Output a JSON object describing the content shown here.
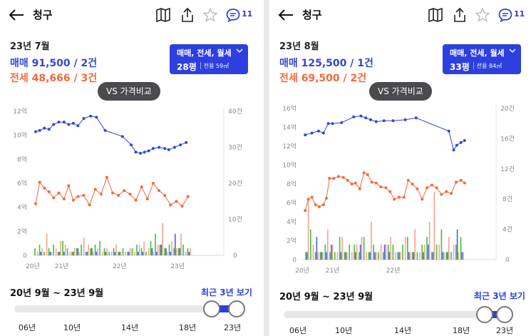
{
  "colors": {
    "sale": "#3347d4",
    "rent_jeonse": "#f06a3d",
    "bar_green": "#3fbf3f",
    "bar_blue": "#4a5fe6",
    "bar_pink": "#f4a38f",
    "accent": "#2e3fe0"
  },
  "panels": [
    {
      "header": {
        "title": "청구",
        "comment_count": "11",
        "icons": [
          "back-arrow-icon",
          "map-book-icon",
          "share-icon",
          "star-icon",
          "comment-icon"
        ]
      },
      "summary": {
        "month": "23년 7월",
        "sale": "매매 91,500 / 2건",
        "jeonse": "전세 48,666 / 3건"
      },
      "filter": {
        "types": "매매, 전세, 월세",
        "size": "28평",
        "area": "전용 59㎡"
      },
      "vs_label": "VS 가격비교",
      "range_label": "20년 9월 ~ 23년 9월",
      "recent_label": "최근 3년 보기",
      "slider_years": [
        "06년",
        "10년",
        "14년",
        "18년",
        "23년"
      ],
      "chart_data": {
        "type": "line",
        "x_ticks": [
          "20년",
          "21년",
          "22년",
          "23년"
        ],
        "left_axis": {
          "unit": "억",
          "range": [
            0,
            12
          ],
          "ticks": [
            "0",
            "2억",
            "4억",
            "6억",
            "8억",
            "10억",
            "12억"
          ]
        },
        "right_axis": {
          "unit": "건",
          "range": [
            0,
            40
          ],
          "ticks": [
            "0",
            "10건",
            "20건",
            "30건",
            "40건"
          ]
        },
        "x_range": [
          2020.5,
          2023.8
        ],
        "series": [
          {
            "kind": "sale",
            "x": [
              2020.55,
              2020.62,
              2020.7,
              2020.78,
              2020.86,
              2020.95,
              2021.04,
              2021.12,
              2021.2,
              2021.28,
              2021.38,
              2021.5,
              2021.6,
              2021.75,
              2022.05,
              2022.2,
              2022.28,
              2022.36,
              2022.43,
              2022.5,
              2022.58,
              2022.68,
              2022.78,
              2022.85,
              2022.95,
              2023.05,
              2023.15
            ],
            "y": [
              10.3,
              10.4,
              10.6,
              10.5,
              10.9,
              11.1,
              11.1,
              10.9,
              11.0,
              10.8,
              11.4,
              11.6,
              11.5,
              10.4,
              9.9,
              9.2,
              8.6,
              8.5,
              8.6,
              8.7,
              8.9,
              9.0,
              8.9,
              8.8,
              9.0,
              9.2,
              9.4
            ]
          },
          {
            "kind": "jeonse",
            "x": [
              2020.55,
              2020.62,
              2020.7,
              2020.78,
              2020.86,
              2020.95,
              2021.04,
              2021.12,
              2021.2,
              2021.28,
              2021.38,
              2021.48,
              2021.58,
              2021.68,
              2021.78,
              2021.88,
              2021.98,
              2022.08,
              2022.18,
              2022.28,
              2022.38,
              2022.48,
              2022.58,
              2022.68,
              2022.78,
              2022.88,
              2022.98,
              2023.08,
              2023.18
            ],
            "y": [
              4.3,
              6.1,
              5.6,
              5.3,
              4.8,
              5.2,
              4.7,
              5.8,
              4.6,
              4.9,
              5.0,
              4.2,
              5.5,
              5.1,
              6.5,
              5.2,
              5.0,
              5.4,
              5.1,
              4.6,
              5.7,
              4.7,
              6.0,
              5.4,
              5.0,
              4.2,
              4.5,
              4.1,
              4.9
            ]
          }
        ],
        "volume_bars": {
          "x": [
            2020.56,
            2020.64,
            2020.72,
            2020.8,
            2020.88,
            2020.96,
            2021.04,
            2021.12,
            2021.2,
            2021.28,
            2021.36,
            2021.44,
            2021.52,
            2021.6,
            2021.68,
            2021.76,
            2021.84,
            2021.92,
            2022.0,
            2022.08,
            2022.16,
            2022.24,
            2022.32,
            2022.4,
            2022.48,
            2022.56,
            2022.64,
            2022.72,
            2022.8,
            2022.88,
            2022.96,
            2023.04,
            2023.12,
            2023.2
          ],
          "green": [
            2,
            3,
            1,
            2,
            3,
            1,
            4,
            2,
            1,
            2,
            3,
            1,
            2,
            3,
            4,
            2,
            1,
            2,
            1,
            2,
            1,
            2,
            3,
            2,
            1,
            4,
            6,
            3,
            2,
            3,
            2,
            2,
            3,
            2
          ],
          "blue": [
            0,
            1,
            0,
            1,
            0,
            1,
            1,
            0,
            1,
            2,
            0,
            1,
            2,
            1,
            0,
            1,
            0,
            1,
            1,
            0,
            1,
            0,
            1,
            1,
            0,
            2,
            1,
            3,
            2,
            1,
            6,
            2,
            0,
            1
          ],
          "pink": [
            1,
            2,
            6,
            1,
            2,
            4,
            3,
            1,
            2,
            1,
            5,
            3,
            1,
            2,
            1,
            2,
            1,
            3,
            1,
            1,
            2,
            1,
            3,
            4,
            2,
            1,
            3,
            9,
            1,
            4,
            2,
            6,
            1,
            2
          ]
        }
      }
    },
    {
      "header": {
        "title": "청구",
        "comment_count": "11",
        "icons": [
          "back-arrow-icon",
          "map-book-icon",
          "share-icon",
          "star-icon",
          "comment-icon"
        ]
      },
      "summary": {
        "month": "23년 8월",
        "sale": "매매 125,500 / 1건",
        "jeonse": "전세 69,500 / 2건"
      },
      "filter": {
        "types": "매매, 전세, 월세",
        "size": "33평",
        "area": "전용 84㎡"
      },
      "vs_label": "VS 가격비교",
      "range_label": "20년 9월 ~ 23년 9월",
      "recent_label": "최근 3년 보기",
      "slider_years": [
        "06년",
        "10년",
        "14년",
        "18년",
        "23년"
      ],
      "chart_data": {
        "type": "line",
        "x_ticks": [
          "20년",
          "21년",
          "22년"
        ],
        "left_axis": {
          "unit": "억",
          "range": [
            0,
            16
          ],
          "ticks": [
            "0",
            "2억",
            "4억",
            "6억",
            "8억",
            "10억",
            "12억",
            "14억",
            "16억"
          ]
        },
        "right_axis": {
          "unit": "건",
          "range": [
            0,
            20
          ],
          "ticks": [
            "0",
            "4건",
            "8건",
            "12건",
            "16건",
            "20건"
          ]
        },
        "x_range": [
          2020.5,
          2023.7
        ],
        "series": [
          {
            "kind": "sale",
            "x": [
              2020.55,
              2020.66,
              2020.77,
              2020.85,
              2020.93,
              2021.0,
              2021.15,
              2021.35,
              2021.47,
              2021.55,
              2021.63,
              2021.72,
              2021.85,
              2022.0,
              2022.2,
              2022.38,
              2022.92,
              2023.0,
              2023.05,
              2023.12,
              2023.18
            ],
            "y": [
              13.2,
              13.4,
              13.6,
              13.4,
              14.4,
              14.4,
              14.5,
              15.1,
              15.2,
              15.0,
              14.8,
              14.6,
              14.7,
              14.7,
              14.8,
              15.0,
              13.6,
              11.6,
              12.1,
              12.4,
              12.6
            ]
          },
          {
            "kind": "jeonse",
            "x": [
              2020.55,
              2020.6,
              2020.66,
              2020.72,
              2020.78,
              2020.85,
              2020.9,
              2020.95,
              2021.02,
              2021.1,
              2021.18,
              2021.25,
              2021.32,
              2021.38,
              2021.45,
              2021.52,
              2021.58,
              2021.65,
              2021.72,
              2021.8,
              2021.88,
              2021.95,
              2022.02,
              2022.1,
              2022.18,
              2022.25,
              2022.32,
              2022.4,
              2022.48,
              2022.56,
              2022.64,
              2022.72,
              2022.8,
              2022.88,
              2022.96,
              2023.04,
              2023.12,
              2023.18
            ],
            "y": [
              5.2,
              6.4,
              6.6,
              5.8,
              5.6,
              5.8,
              6.5,
              8.6,
              8.6,
              8.8,
              8.7,
              8.4,
              8.0,
              8.1,
              7.5,
              9.2,
              9.0,
              8.2,
              8.1,
              7.7,
              7.6,
              7.2,
              6.4,
              6.6,
              6.6,
              8.4,
              8.0,
              7.5,
              6.4,
              7.6,
              7.9,
              7.6,
              6.9,
              7.2,
              7.0,
              8.2,
              8.4,
              8.1
            ]
          }
        ],
        "volume_bars": {
          "x": [
            2020.58,
            2020.66,
            2020.74,
            2020.82,
            2020.9,
            2020.98,
            2021.06,
            2021.14,
            2021.22,
            2021.3,
            2021.38,
            2021.46,
            2021.54,
            2021.62,
            2021.7,
            2021.78,
            2021.86,
            2021.94,
            2022.02,
            2022.1,
            2022.18,
            2022.26,
            2022.34,
            2022.42,
            2022.5,
            2022.58,
            2022.66,
            2022.74,
            2022.82,
            2022.9,
            2022.98,
            2023.06,
            2023.14
          ],
          "green": [
            1,
            4,
            1,
            1,
            2,
            1,
            1,
            3,
            1,
            2,
            2,
            1,
            3,
            1,
            2,
            1,
            1,
            2,
            2,
            1,
            2,
            3,
            1,
            1,
            2,
            3,
            1,
            2,
            4,
            1,
            1,
            2,
            3
          ],
          "blue": [
            1,
            0,
            3,
            1,
            1,
            2,
            0,
            1,
            1,
            0,
            1,
            2,
            0,
            1,
            1,
            0,
            2,
            1,
            0,
            1,
            0,
            1,
            1,
            0,
            1,
            2,
            1,
            0,
            1,
            1,
            0,
            4,
            1
          ],
          "pink": [
            8,
            2,
            1,
            1,
            4,
            2,
            1,
            3,
            1,
            1,
            2,
            3,
            1,
            5,
            1,
            2,
            2,
            3,
            1,
            1,
            3,
            1,
            4,
            1,
            2,
            5,
            9,
            2,
            1,
            3,
            2,
            1,
            1
          ]
        }
      }
    }
  ]
}
